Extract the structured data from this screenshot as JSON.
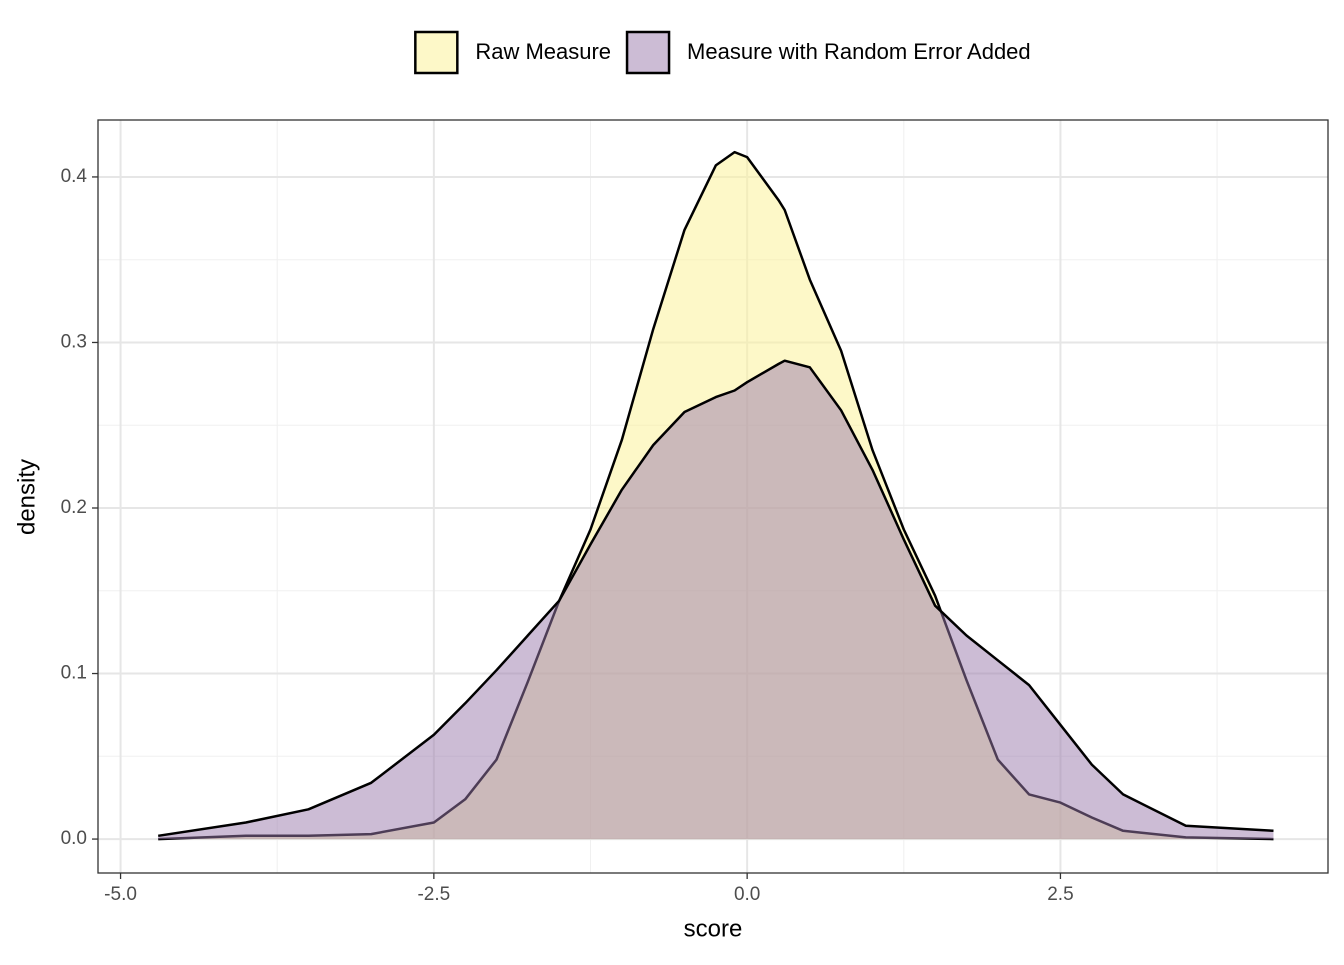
{
  "chart_data": {
    "type": "density",
    "x_label": "score",
    "y_label": "density",
    "x": [
      -4.7,
      -4.0,
      -3.5,
      -3.0,
      -2.5,
      -2.25,
      -2.0,
      -1.75,
      -1.5,
      -1.25,
      -1.0,
      -0.75,
      -0.5,
      -0.25,
      -0.1,
      0.0,
      0.25,
      0.3,
      0.5,
      0.75,
      1.0,
      1.25,
      1.5,
      1.75,
      2.0,
      2.25,
      2.5,
      2.75,
      3.0,
      3.5,
      4.2
    ],
    "series": [
      {
        "name": "Raw Measure",
        "color": "#fbf29a",
        "alpha": 0.55,
        "values": [
          0.0,
          0.002,
          0.002,
          0.003,
          0.01,
          0.024,
          0.048,
          0.095,
          0.144,
          0.187,
          0.241,
          0.308,
          0.368,
          0.407,
          0.415,
          0.412,
          0.386,
          0.38,
          0.338,
          0.295,
          0.235,
          0.187,
          0.147,
          0.096,
          0.048,
          0.027,
          0.022,
          0.013,
          0.005,
          0.001,
          0.0
        ]
      },
      {
        "name": "Measure with Random Error Added",
        "color": "#9a79ab",
        "alpha": 0.5,
        "values": [
          0.002,
          0.01,
          0.018,
          0.034,
          0.063,
          0.082,
          0.102,
          0.123,
          0.144,
          0.178,
          0.211,
          0.238,
          0.258,
          0.267,
          0.271,
          0.276,
          0.287,
          0.289,
          0.285,
          0.259,
          0.223,
          0.181,
          0.141,
          0.123,
          0.108,
          0.093,
          0.069,
          0.045,
          0.027,
          0.008,
          0.005
        ]
      }
    ],
    "xlim": [
      -5.18,
      4.635
    ],
    "ylim": [
      -0.0205,
      0.4344
    ],
    "xticks": [
      {
        "value": -5,
        "label": "-5.0"
      },
      {
        "value": -2.5,
        "label": "-2.5"
      },
      {
        "value": 0,
        "label": "0.0"
      },
      {
        "value": 2.5,
        "label": "2.5"
      }
    ],
    "yticks": [
      {
        "value": 0,
        "label": "0.0"
      },
      0.1,
      0.2,
      0.3,
      0.4
    ],
    "x_minor_grid": [
      -3.75,
      -1.25,
      1.25,
      3.75
    ],
    "y_minor_grid": [
      0.05,
      0.15,
      0.25,
      0.35
    ],
    "grid": true,
    "legend_position": "top"
  }
}
